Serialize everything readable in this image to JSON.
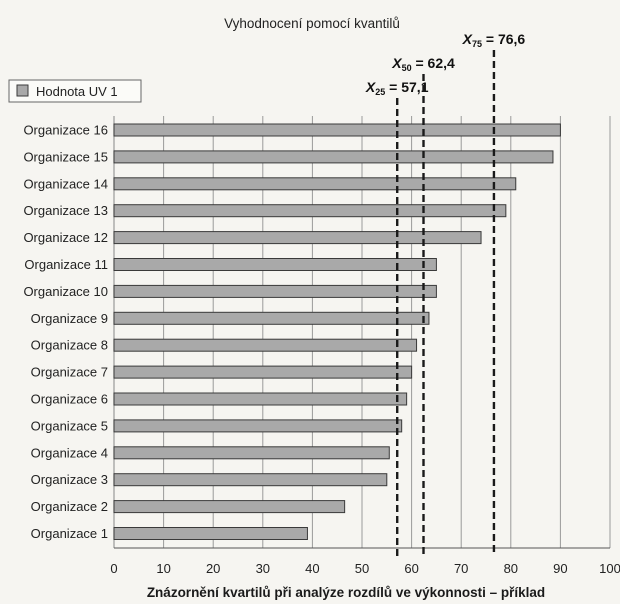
{
  "chart_data": {
    "type": "bar",
    "orientation": "horizontal",
    "title": "Vyhodnocení pomocí kvantilů",
    "caption": "Znázornění kvartilů při analýze rozdílů ve výkonnosti – příklad",
    "legend": {
      "label": "Hodnota UV 1",
      "placement": "top-left"
    },
    "categories": [
      "Organizace 16",
      "Organizace 15",
      "Organizace 14",
      "Organizace 13",
      "Organizace 12",
      "Organizace 11",
      "Organizace 10",
      "Organizace 9",
      "Organizace 8",
      "Organizace 7",
      "Organizace 6",
      "Organizace 5",
      "Organizace 4",
      "Organizace 3",
      "Organizace 2",
      "Organizace 1"
    ],
    "series": [
      {
        "name": "Hodnota UV 1",
        "values": [
          90,
          88.5,
          81,
          79,
          74,
          65,
          65,
          63.5,
          61,
          60,
          59,
          58,
          55.5,
          55,
          46.5,
          39
        ]
      }
    ],
    "xlim": [
      0,
      100
    ],
    "xticks": [
      0,
      10,
      20,
      30,
      40,
      50,
      60,
      70,
      80,
      90,
      100
    ],
    "grid": "vertical",
    "quantiles": [
      {
        "symbol": "X",
        "sub": "25",
        "value": 57.1,
        "label": " = 57,1"
      },
      {
        "symbol": "X",
        "sub": "50",
        "value": 62.4,
        "label": " = 62,4"
      },
      {
        "symbol": "X",
        "sub": "75",
        "value": 76.6,
        "label": " = 76,6"
      }
    ],
    "colors": {
      "bar_fill": "#a9a9a9",
      "bar_stroke": "#3a3a3a",
      "quantile_line": "#1a1a1a",
      "grid": "#9a9a9a"
    }
  }
}
